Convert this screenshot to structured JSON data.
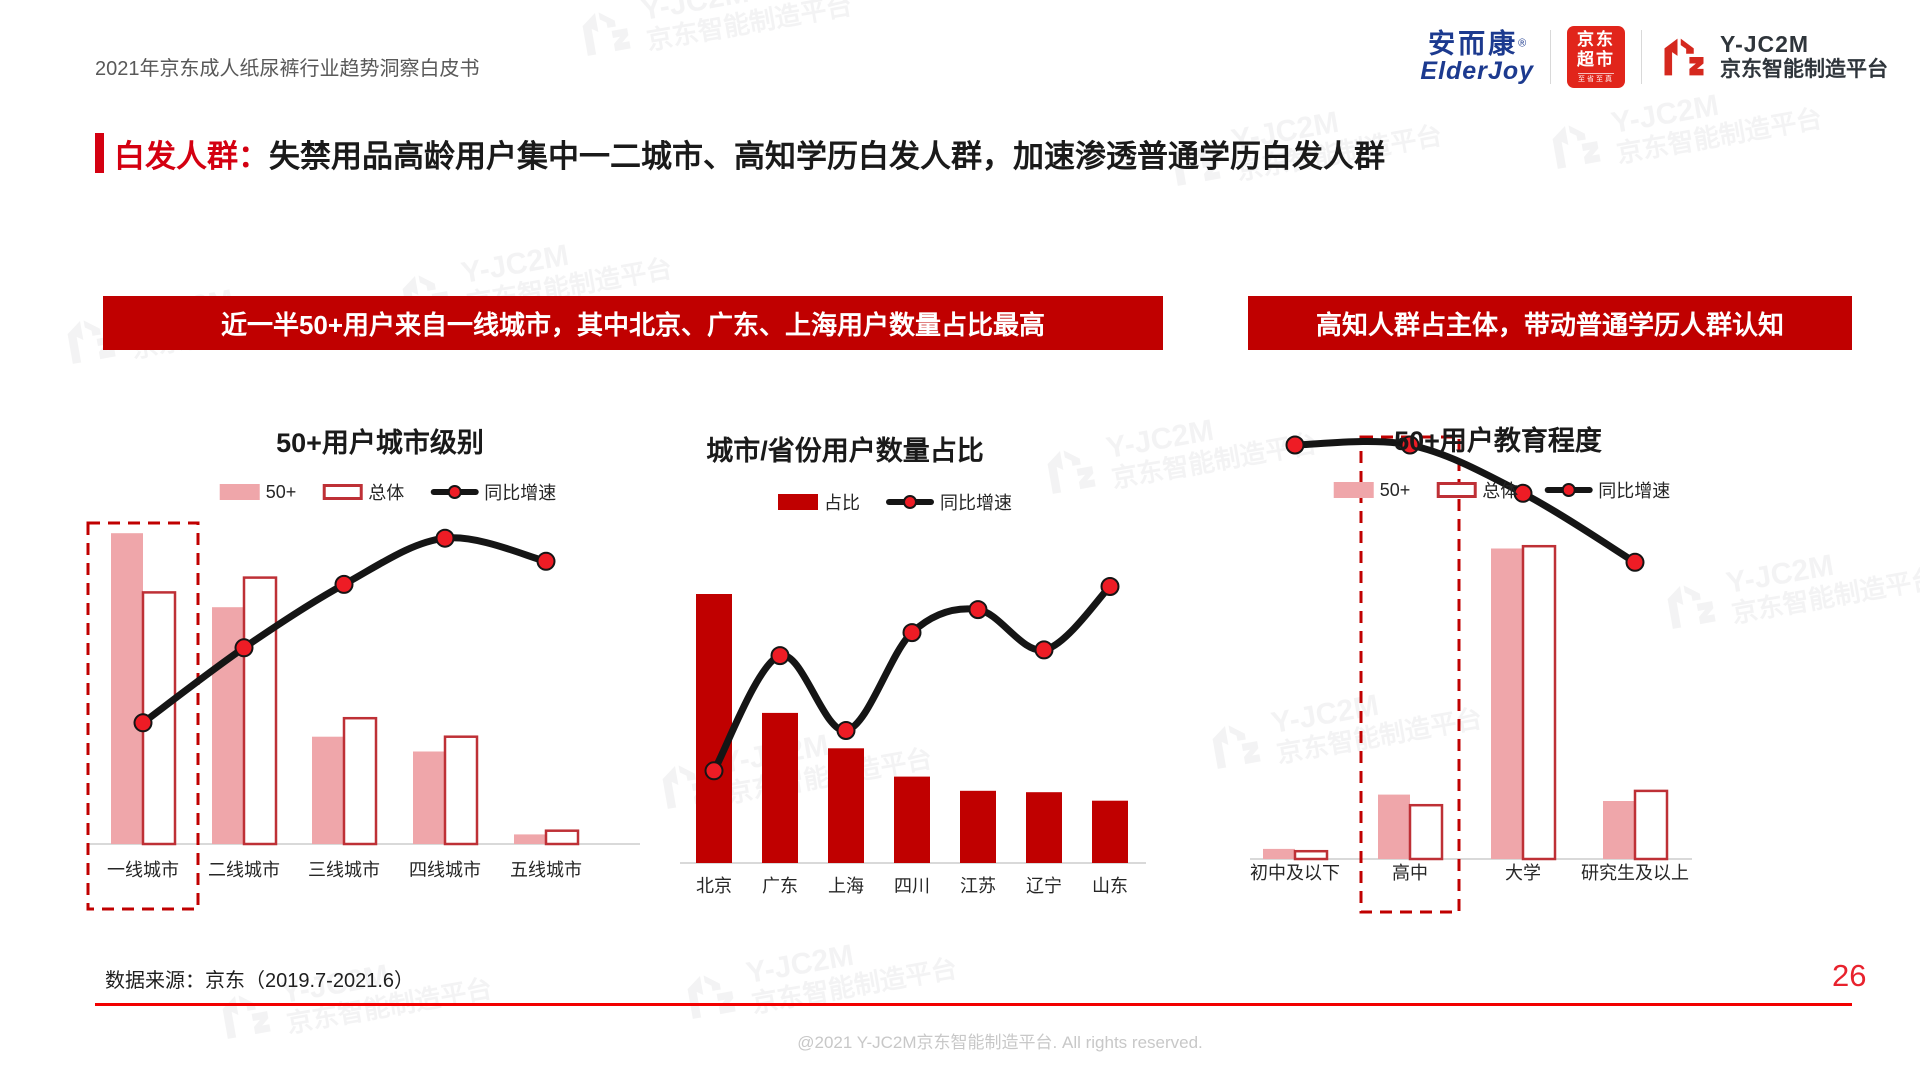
{
  "page": {
    "header_label": "2021年京东成人纸尿裤行业趋势洞察白皮书",
    "title_highlight": "白发人群：",
    "title_rest": "失禁用品高龄用户集中一二城市、高知学历白发人群，加速渗透普通学历白发人群",
    "data_source": "数据来源：京东（2019.7-2021.6）",
    "page_number": "26",
    "copyright": "@2021 Y-JC2M京东智能制造平台. All rights reserved."
  },
  "banners": [
    "近一半50+用户来自一线城市，其中北京、广东、上海用户数量占比最高",
    "高知人群占主体，带动普通学历人群认知"
  ],
  "logos": {
    "elderjoy_cn": "安而康",
    "elderjoy_reg": "®",
    "elderjoy_en": "ElderJoy",
    "jd_line1": "京东",
    "jd_line2": "超市",
    "jd_sub": "至省至真",
    "yjc2m_name": "Y-JC2M",
    "yjc2m_sub": "京东智能制造平台"
  },
  "watermark": {
    "name": "Y-JC2M",
    "sub": "京东智能制造平台"
  },
  "colors": {
    "banner_red": "#C00000",
    "title_red": "#D40011",
    "bar_pink": "#EFA6AA",
    "bar_outline_red": "#BE3036",
    "bar_dark_red": "#C00000",
    "line_black": "#151515",
    "dot_red": "#EE1C25",
    "axis_gray": "#D9D9D9",
    "jd_red": "#E1251B",
    "elderjoy_blue": "#1C3A8F",
    "footer_line_red": "#F20000",
    "page_number_red": "#E8222D",
    "highlight_box_red": "#C00000"
  },
  "chart_data": [
    {
      "type": "bar+line",
      "title": "50+用户城市级别",
      "categories": [
        "一线城市",
        "二线城市",
        "三线城市",
        "四线城市",
        "五线城市"
      ],
      "series": [
        {
          "name": "50+",
          "values": [
            42,
            32,
            14.5,
            12.5,
            1.3
          ]
        },
        {
          "name": "总体",
          "values": [
            34,
            36,
            17,
            14.5,
            1.8
          ]
        }
      ],
      "line": {
        "name": "同比增速",
        "values": [
          21,
          34,
          45,
          53,
          49
        ]
      },
      "unit": "%",
      "highlight_category": "一线城市",
      "bar_axis_range": [
        0,
        55
      ],
      "line_axis_range": [
        0,
        70
      ],
      "grid": false,
      "legend_position": "top"
    },
    {
      "type": "bar+line",
      "title": "城市/省份用户数量占比",
      "categories": [
        "北京",
        "广东",
        "上海",
        "四川",
        "江苏",
        "辽宁",
        "山东"
      ],
      "series": [
        {
          "name": "占比",
          "values": [
            19,
            10.6,
            8.1,
            6.1,
            5.1,
            5,
            4.4
          ]
        }
      ],
      "line": {
        "name": "同比增速",
        "values": [
          16,
          36,
          23,
          40,
          44,
          37,
          48
        ]
      },
      "unit": "%",
      "bar_axis_range": [
        0,
        25
      ],
      "line_axis_range": [
        0,
        60
      ],
      "grid": false,
      "legend_position": "top"
    },
    {
      "type": "bar+line",
      "title": "50+用户教育程度",
      "categories": [
        "初中及以下",
        "高中",
        "大学",
        "研究生及以上"
      ],
      "series": [
        {
          "name": "50+",
          "values": [
            2.2,
            14,
            67.5,
            12.6
          ]
        },
        {
          "name": "总体",
          "values": [
            1.7,
            11.7,
            68,
            14.8
          ]
        }
      ],
      "line": {
        "name": "同比增速",
        "values": [
          60,
          60,
          53,
          43
        ]
      },
      "unit": "%",
      "highlight_category": "高中",
      "bar_axis_range": [
        0,
        75
      ],
      "line_axis_range": [
        0,
        65
      ],
      "grid": false,
      "legend_position": "top"
    }
  ]
}
